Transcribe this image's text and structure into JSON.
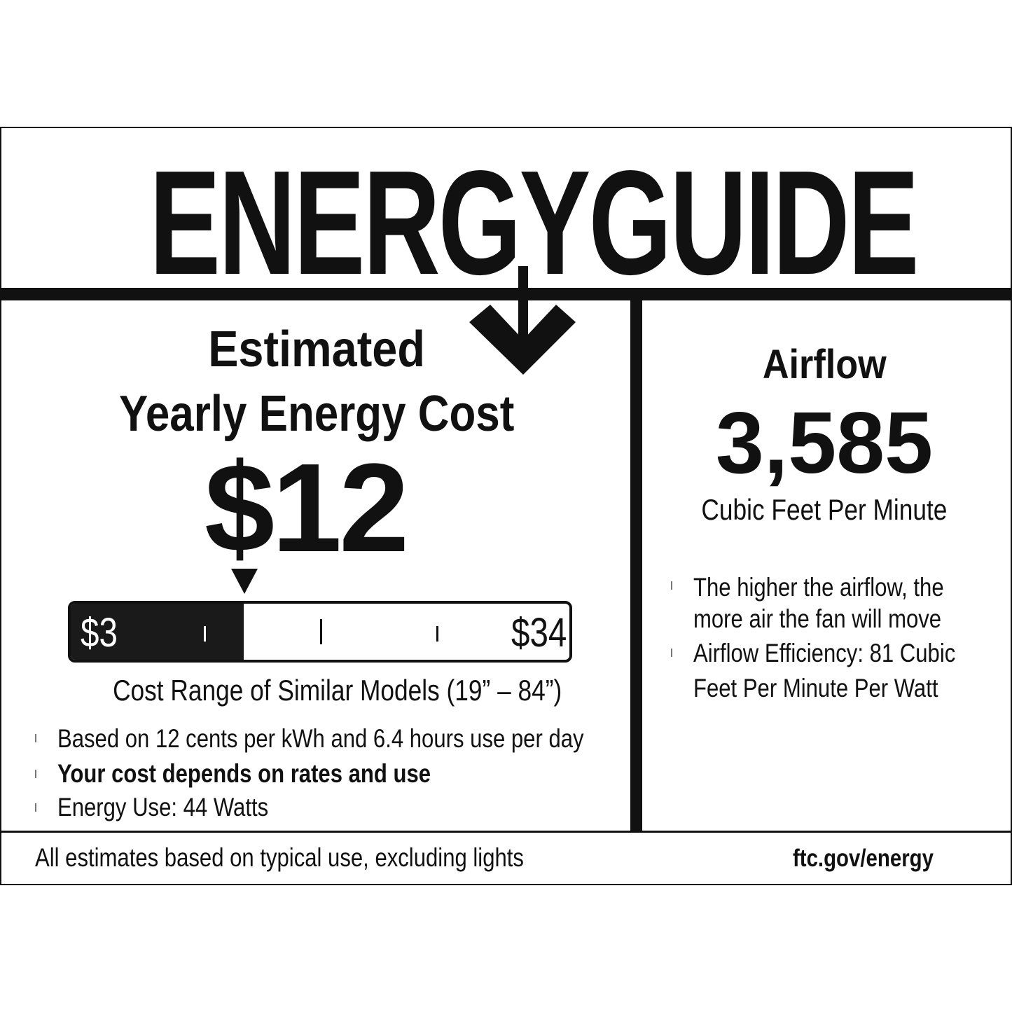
{
  "logo": {
    "text": "ENERGYGUIDE"
  },
  "cost": {
    "heading_line1": "Estimated",
    "heading_line2": "Yearly Energy Cost",
    "value": "$12",
    "value_number": 12,
    "range_min": "$3",
    "range_max": "$34",
    "range_caption": "Cost Range of Similar Models (19” – 84”)",
    "bullets": [
      {
        "text": "Based on 12 cents per kWh and 6.4 hours use per day",
        "bold": false
      },
      {
        "text": "Your cost depends on rates and use",
        "bold": true
      },
      {
        "text": "Energy Use: 44 Watts",
        "bold": false
      }
    ]
  },
  "airflow": {
    "heading": "Airflow",
    "value": "3,585",
    "unit": "Cubic Feet Per Minute",
    "bullets": [
      {
        "lines": [
          "The higher the airflow, the",
          "more air the fan will move"
        ]
      },
      {
        "lines": [
          "Airflow Efficiency: 81 Cubic",
          "Feet Per Minute Per Watt"
        ]
      }
    ]
  },
  "footer": {
    "note": "All estimates based on typical use, excluding lights",
    "link": "ftc.gov/energy"
  }
}
